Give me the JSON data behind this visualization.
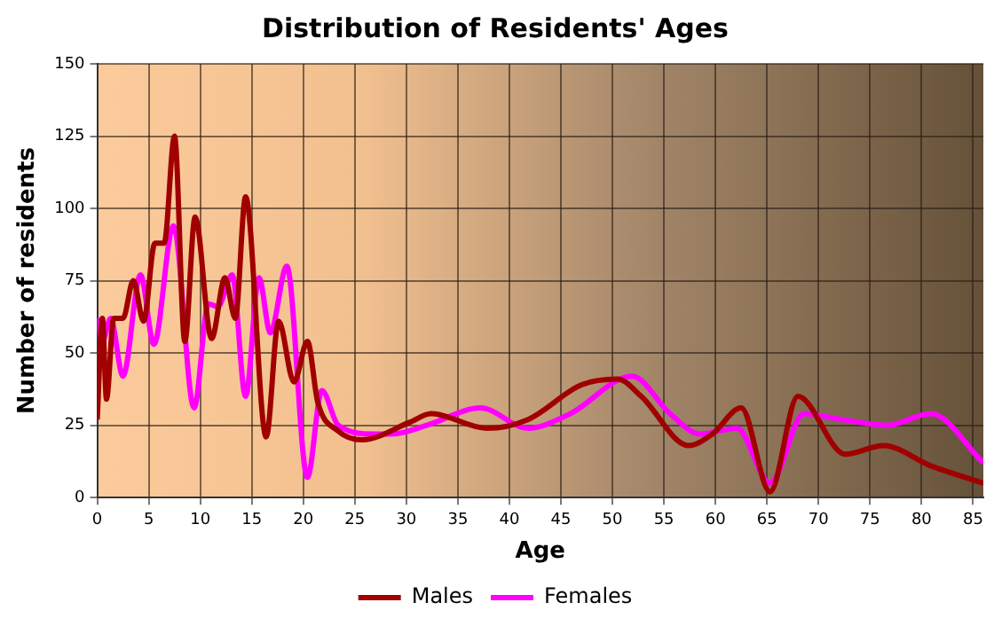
{
  "chart_data": {
    "type": "line",
    "title": "Distribution of Residents' Ages",
    "xlabel": "Age",
    "ylabel": "Number of residents",
    "xlim": [
      0,
      86
    ],
    "xticks": [
      0,
      5,
      10,
      15,
      20,
      25,
      30,
      35,
      40,
      45,
      50,
      55,
      60,
      65,
      70,
      75,
      80,
      85
    ],
    "ylim": [
      0,
      150
    ],
    "yticks": [
      0,
      25,
      50,
      75,
      100,
      125,
      150
    ],
    "grid": true,
    "legend": "bottom",
    "marker": "none",
    "line_style": "solid",
    "series": [
      {
        "name": "Males",
        "color": "#a00000",
        "x": [
          0,
          0.5,
          0.9,
          1.6,
          2.5,
          3.5,
          4.5,
          5.6,
          6.5,
          7.5,
          8.5,
          9.5,
          11.1,
          12.4,
          13.4,
          14.4,
          16.4,
          17.6,
          19.1,
          20.4,
          21.4,
          23.4,
          25.7,
          30.3,
          32.4,
          37.8,
          41.8,
          47,
          50.5,
          52.8,
          57.4,
          59.7,
          62.5,
          65.3,
          68,
          72.6,
          76.3,
          80.9,
          86
        ],
        "values": [
          27,
          62,
          34,
          62,
          62,
          75,
          61,
          88,
          88,
          125,
          54,
          97,
          55,
          76,
          62,
          104,
          21,
          61,
          40,
          54,
          33,
          23,
          20,
          26,
          29,
          24,
          27,
          39,
          41,
          35,
          18,
          22,
          31,
          2,
          35,
          15,
          18,
          11,
          5
        ]
      },
      {
        "name": "Females",
        "color": "#ff00ff",
        "x": [
          0,
          0.5,
          1.3,
          2.5,
          4.2,
          5.5,
          7.4,
          9.4,
          10.8,
          11.7,
          13.1,
          14.4,
          15.7,
          16.8,
          18.4,
          20.4,
          21.8,
          23.4,
          26.9,
          28.6,
          32,
          37.2,
          41.8,
          45.9,
          51.9,
          55.6,
          58.5,
          62.1,
          65.3,
          68.6,
          72.3,
          76.6,
          80.9,
          86
        ],
        "values": [
          62,
          54,
          62,
          42,
          77,
          53,
          94,
          31,
          67,
          66,
          77,
          35,
          76,
          57,
          80,
          7,
          37,
          25,
          22,
          22,
          25,
          31,
          24,
          29,
          42,
          29,
          22,
          24,
          5,
          29,
          27,
          25,
          29,
          12
        ]
      }
    ]
  }
}
